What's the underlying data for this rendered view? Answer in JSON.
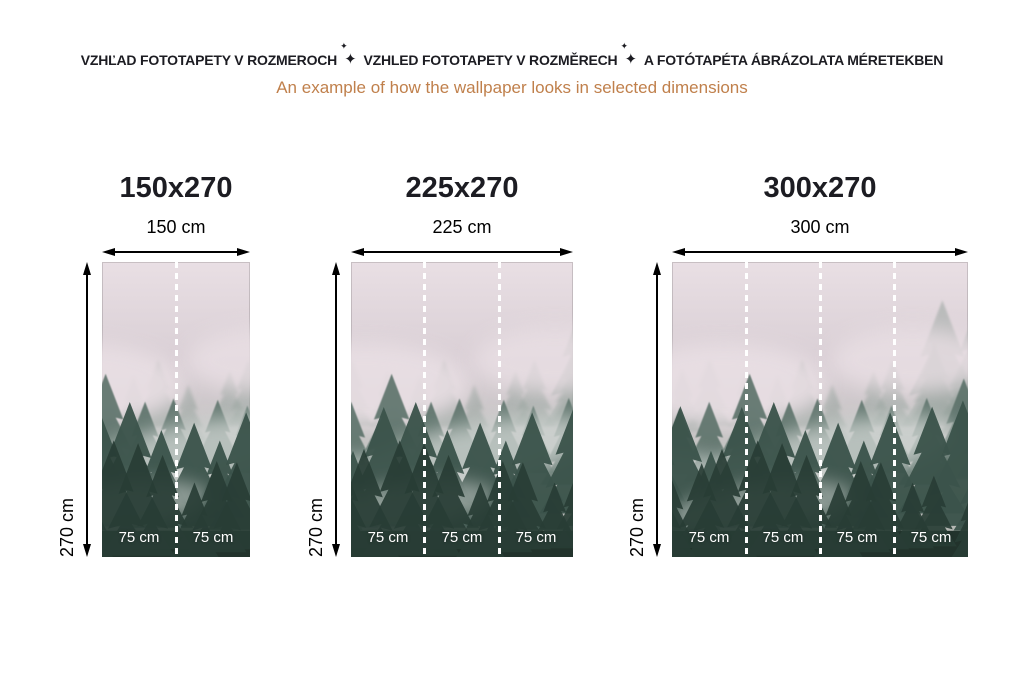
{
  "header": {
    "title_parts": [
      "VZHĽAD FOTOTAPETY V ROZMEROCH",
      "VZHLED FOTOTAPETY V ROZMĚRECH",
      "A FOTÓTAPÉTA ÁBRÁZOLATA MÉRETEKBEN"
    ],
    "separator_icon": "sparkle",
    "separator_glyph": "✦",
    "subtitle": "An example of how the wallpaper looks in selected dimensions"
  },
  "panels": [
    {
      "title": "150x270",
      "width_label": "150 cm",
      "height_label": "270 cm",
      "segments": [
        "75 cm",
        "75 cm"
      ]
    },
    {
      "title": "225x270",
      "width_label": "225 cm",
      "height_label": "270 cm",
      "segments": [
        "75 cm",
        "75 cm",
        "75 cm"
      ]
    },
    {
      "title": "300x270",
      "width_label": "300 cm",
      "height_label": "270 cm",
      "segments": [
        "75 cm",
        "75 cm",
        "75 cm",
        "75 cm"
      ]
    }
  ],
  "theme": {
    "background": "#ffffff",
    "title_color": "#1c1c22",
    "subtitle_color": "#c0804c",
    "dimension_color": "#000000",
    "segment_label_color": "#ffffff",
    "divider_color": "#ffffff",
    "fog_top": "#e9dfe4",
    "fog_mid": "#d8ced4",
    "fog_low": "#c3c2c1",
    "fog_base": "#b0b5b0",
    "tree_far": "#93a09a",
    "tree_mid": "#5c726a",
    "tree_near": "#3b534b",
    "tree_front": "#283d35",
    "forest_floor": "#22332c"
  }
}
